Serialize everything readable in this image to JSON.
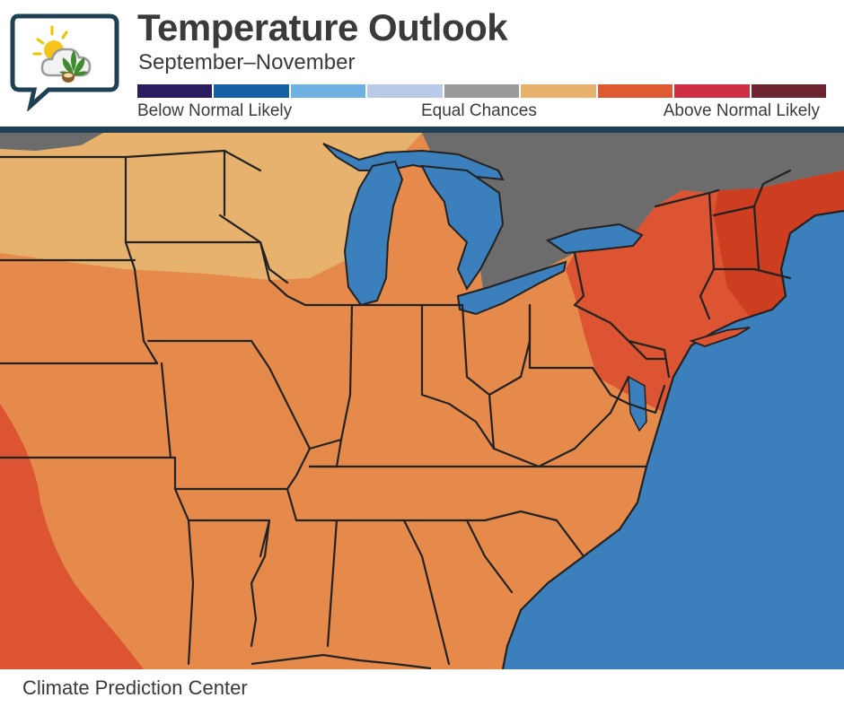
{
  "title": "Temperature Outlook",
  "subtitle": "September–November",
  "legend": {
    "colors": [
      "#2a1c5e",
      "#1561a8",
      "#6fb1e2",
      "#b9cbe9",
      "#9a9a9a",
      "#e6b26e",
      "#de5a30",
      "#cf2f45",
      "#6e2330"
    ],
    "below_label": "Below Normal Likely",
    "equal_label": "Equal Chances",
    "above_label": "Above Normal Likely"
  },
  "map": {
    "colors": {
      "ocean": "#3b7fbd",
      "lake": "#3b7fbd",
      "equal_chances": "#6c6c6c",
      "above_low": "#e6b26e",
      "above_mid": "#e68a4c",
      "above_high": "#dc5431",
      "above_very_high": "#cd3d1f",
      "border": "#222222"
    }
  },
  "credit": "Climate Prediction Center"
}
